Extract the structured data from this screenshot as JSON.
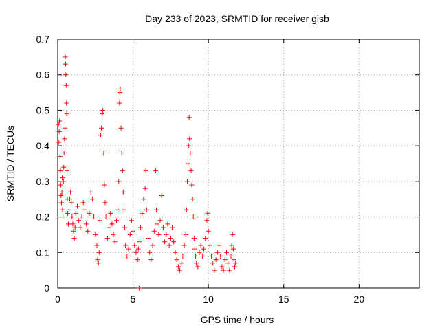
{
  "chart_data": {
    "type": "scatter",
    "title": "Day 233 of 2023, SRMTID for receiver gisb",
    "xlabel": "GPS time / hours",
    "ylabel": "SRMTID / TECUs",
    "xlim": [
      0,
      24
    ],
    "ylim": [
      0,
      0.7
    ],
    "xticks": [
      0,
      5,
      10,
      15,
      20
    ],
    "yticks": [
      0,
      0.1,
      0.2,
      0.3,
      0.4,
      0.5,
      0.6,
      0.7
    ],
    "grid": true,
    "marker": "+",
    "color": "#ff0000",
    "series": [
      {
        "name": "SRMTID",
        "points": [
          [
            0.05,
            0.46
          ],
          [
            0.08,
            0.41
          ],
          [
            0.1,
            0.44
          ],
          [
            0.12,
            0.47
          ],
          [
            0.15,
            0.37
          ],
          [
            0.18,
            0.33
          ],
          [
            0.2,
            0.29
          ],
          [
            0.22,
            0.26
          ],
          [
            0.25,
            0.24
          ],
          [
            0.28,
            0.27
          ],
          [
            0.3,
            0.31
          ],
          [
            0.32,
            0.22
          ],
          [
            0.35,
            0.2
          ],
          [
            0.38,
            0.3
          ],
          [
            0.4,
            0.34
          ],
          [
            0.42,
            0.38
          ],
          [
            0.45,
            0.42
          ],
          [
            0.48,
            0.45
          ],
          [
            0.5,
            0.65
          ],
          [
            0.52,
            0.63
          ],
          [
            0.54,
            0.6
          ],
          [
            0.56,
            0.57
          ],
          [
            0.58,
            0.52
          ],
          [
            0.6,
            0.49
          ],
          [
            0.62,
            0.33
          ],
          [
            0.64,
            0.25
          ],
          [
            0.66,
            0.21
          ],
          [
            0.7,
            0.18
          ],
          [
            0.75,
            0.22
          ],
          [
            0.8,
            0.25
          ],
          [
            0.85,
            0.27
          ],
          [
            0.9,
            0.24
          ],
          [
            0.95,
            0.2
          ],
          [
            1.0,
            0.18
          ],
          [
            1.05,
            0.16
          ],
          [
            1.1,
            0.14
          ],
          [
            1.15,
            0.17
          ],
          [
            1.2,
            0.21
          ],
          [
            1.3,
            0.23
          ],
          [
            1.4,
            0.19
          ],
          [
            1.5,
            0.17
          ],
          [
            1.6,
            0.2
          ],
          [
            1.7,
            0.24
          ],
          [
            1.8,
            0.22
          ],
          [
            1.9,
            0.18
          ],
          [
            2.0,
            0.16
          ],
          [
            2.1,
            0.21
          ],
          [
            2.2,
            0.27
          ],
          [
            2.3,
            0.25
          ],
          [
            2.4,
            0.2
          ],
          [
            2.5,
            0.15
          ],
          [
            2.6,
            0.12
          ],
          [
            2.65,
            0.08
          ],
          [
            2.7,
            0.07
          ],
          [
            2.75,
            0.1
          ],
          [
            2.8,
            0.19
          ],
          [
            2.85,
            0.43
          ],
          [
            2.9,
            0.45
          ],
          [
            2.95,
            0.49
          ],
          [
            3.0,
            0.5
          ],
          [
            3.05,
            0.38
          ],
          [
            3.1,
            0.29
          ],
          [
            3.15,
            0.24
          ],
          [
            3.2,
            0.2
          ],
          [
            3.3,
            0.14
          ],
          [
            3.4,
            0.17
          ],
          [
            3.5,
            0.21
          ],
          [
            3.6,
            0.18
          ],
          [
            3.7,
            0.15
          ],
          [
            3.8,
            0.13
          ],
          [
            3.9,
            0.19
          ],
          [
            4.0,
            0.22
          ],
          [
            4.05,
            0.3
          ],
          [
            4.1,
            0.52
          ],
          [
            4.12,
            0.55
          ],
          [
            4.15,
            0.56
          ],
          [
            4.2,
            0.45
          ],
          [
            4.25,
            0.38
          ],
          [
            4.3,
            0.33
          ],
          [
            4.35,
            0.27
          ],
          [
            4.4,
            0.22
          ],
          [
            4.45,
            0.17
          ],
          [
            4.5,
            0.12
          ],
          [
            4.6,
            0.09
          ],
          [
            4.7,
            0.11
          ],
          [
            4.8,
            0.15
          ],
          [
            4.9,
            0.19
          ],
          [
            5.0,
            0.16
          ],
          [
            5.1,
            0.12
          ],
          [
            5.2,
            0.1
          ],
          [
            5.3,
            0.08
          ],
          [
            5.35,
            0.11
          ],
          [
            5.4,
            0.0
          ],
          [
            5.45,
            0.13
          ],
          [
            5.5,
            0.17
          ],
          [
            5.6,
            0.21
          ],
          [
            5.7,
            0.25
          ],
          [
            5.8,
            0.28
          ],
          [
            5.85,
            0.33
          ],
          [
            5.9,
            0.22
          ],
          [
            6.0,
            0.14
          ],
          [
            6.1,
            0.1
          ],
          [
            6.2,
            0.08
          ],
          [
            6.3,
            0.12
          ],
          [
            6.4,
            0.16
          ],
          [
            6.5,
            0.33
          ],
          [
            6.55,
            0.22
          ],
          [
            6.6,
            0.18
          ],
          [
            6.7,
            0.15
          ],
          [
            6.8,
            0.19
          ],
          [
            6.9,
            0.26
          ],
          [
            7.0,
            0.17
          ],
          [
            7.1,
            0.13
          ],
          [
            7.2,
            0.15
          ],
          [
            7.3,
            0.18
          ],
          [
            7.4,
            0.12
          ],
          [
            7.5,
            0.14
          ],
          [
            7.6,
            0.17
          ],
          [
            7.7,
            0.13
          ],
          [
            7.8,
            0.1
          ],
          [
            7.9,
            0.08
          ],
          [
            8.0,
            0.06
          ],
          [
            8.1,
            0.05
          ],
          [
            8.2,
            0.07
          ],
          [
            8.3,
            0.09
          ],
          [
            8.4,
            0.12
          ],
          [
            8.5,
            0.15
          ],
          [
            8.55,
            0.22
          ],
          [
            8.6,
            0.3
          ],
          [
            8.65,
            0.35
          ],
          [
            8.7,
            0.4
          ],
          [
            8.72,
            0.48
          ],
          [
            8.75,
            0.42
          ],
          [
            8.8,
            0.38
          ],
          [
            8.85,
            0.33
          ],
          [
            8.9,
            0.29
          ],
          [
            8.95,
            0.25
          ],
          [
            9.0,
            0.2
          ],
          [
            9.05,
            0.14
          ],
          [
            9.1,
            0.11
          ],
          [
            9.15,
            0.09
          ],
          [
            9.2,
            0.07
          ],
          [
            9.3,
            0.06
          ],
          [
            9.4,
            0.1
          ],
          [
            9.5,
            0.12
          ],
          [
            9.6,
            0.09
          ],
          [
            9.7,
            0.11
          ],
          [
            9.8,
            0.14
          ],
          [
            9.9,
            0.19
          ],
          [
            9.95,
            0.21
          ],
          [
            10.0,
            0.16
          ],
          [
            10.1,
            0.12
          ],
          [
            10.2,
            0.09
          ],
          [
            10.3,
            0.07
          ],
          [
            10.4,
            0.05
          ],
          [
            10.5,
            0.08
          ],
          [
            10.6,
            0.1
          ],
          [
            10.7,
            0.12
          ],
          [
            10.8,
            0.09
          ],
          [
            10.9,
            0.06
          ],
          [
            11.0,
            0.05
          ],
          [
            11.1,
            0.08
          ],
          [
            11.2,
            0.1
          ],
          [
            11.3,
            0.07
          ],
          [
            11.4,
            0.05
          ],
          [
            11.5,
            0.09
          ],
          [
            11.55,
            0.12
          ],
          [
            11.6,
            0.15
          ],
          [
            11.65,
            0.11
          ],
          [
            11.7,
            0.08
          ],
          [
            11.75,
            0.06
          ],
          [
            11.8,
            0.07
          ]
        ]
      }
    ]
  }
}
